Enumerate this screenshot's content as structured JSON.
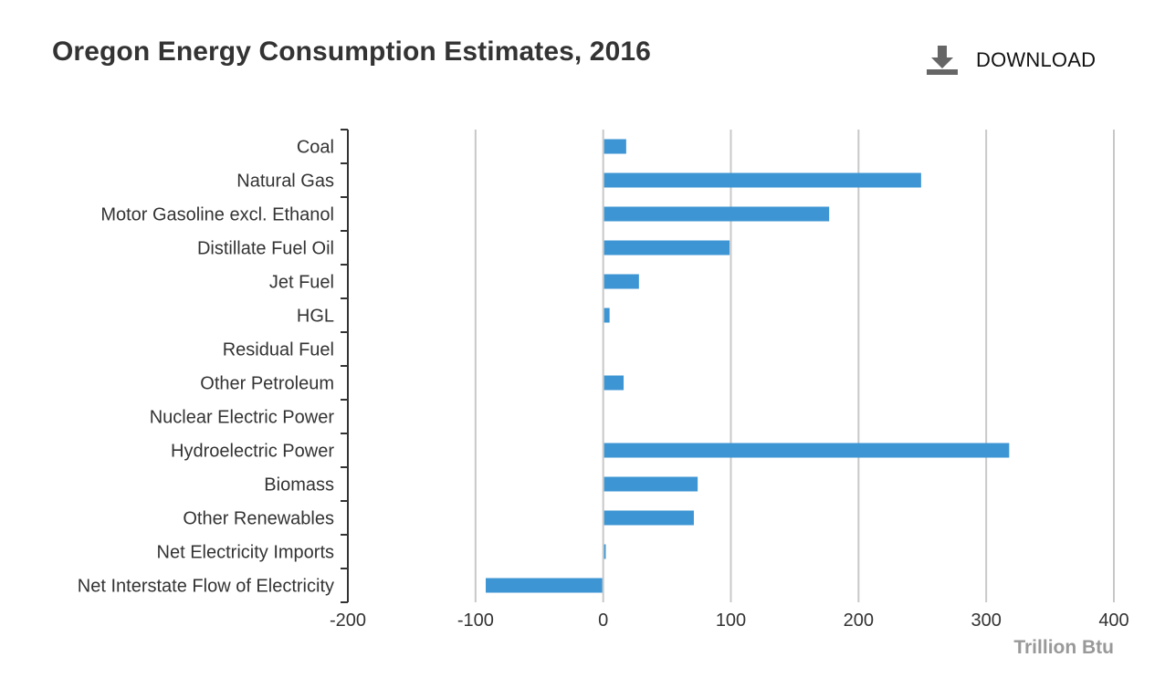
{
  "header": {
    "title": "Oregon Energy Consumption Estimates, 2016",
    "download_label": "DOWNLOAD"
  },
  "icons": {
    "download": "download-icon"
  },
  "colors": {
    "bar": "#3d95d3",
    "grid": "#c8c8c8",
    "axis": "#333333",
    "axis_title": "#999999"
  },
  "chart_data": {
    "type": "bar",
    "orientation": "horizontal",
    "title": "Oregon Energy Consumption Estimates, 2016",
    "xlabel": "Trillion Btu",
    "ylabel": "",
    "xlim": [
      -200,
      400
    ],
    "xticks": [
      -200,
      -100,
      0,
      100,
      200,
      300,
      400
    ],
    "grid": true,
    "legend": "none",
    "categories": [
      "Coal",
      "Natural Gas",
      "Motor Gasoline excl. Ethanol",
      "Distillate Fuel Oil",
      "Jet Fuel",
      "HGL",
      "Residual Fuel",
      "Other Petroleum",
      "Nuclear Electric Power",
      "Hydroelectric Power",
      "Biomass",
      "Other Renewables",
      "Net Electricity Imports",
      "Net Interstate Flow of Electricity"
    ],
    "values": [
      18,
      249,
      177,
      99,
      28,
      5,
      0,
      16,
      0,
      318,
      74,
      71,
      2,
      -92
    ]
  }
}
